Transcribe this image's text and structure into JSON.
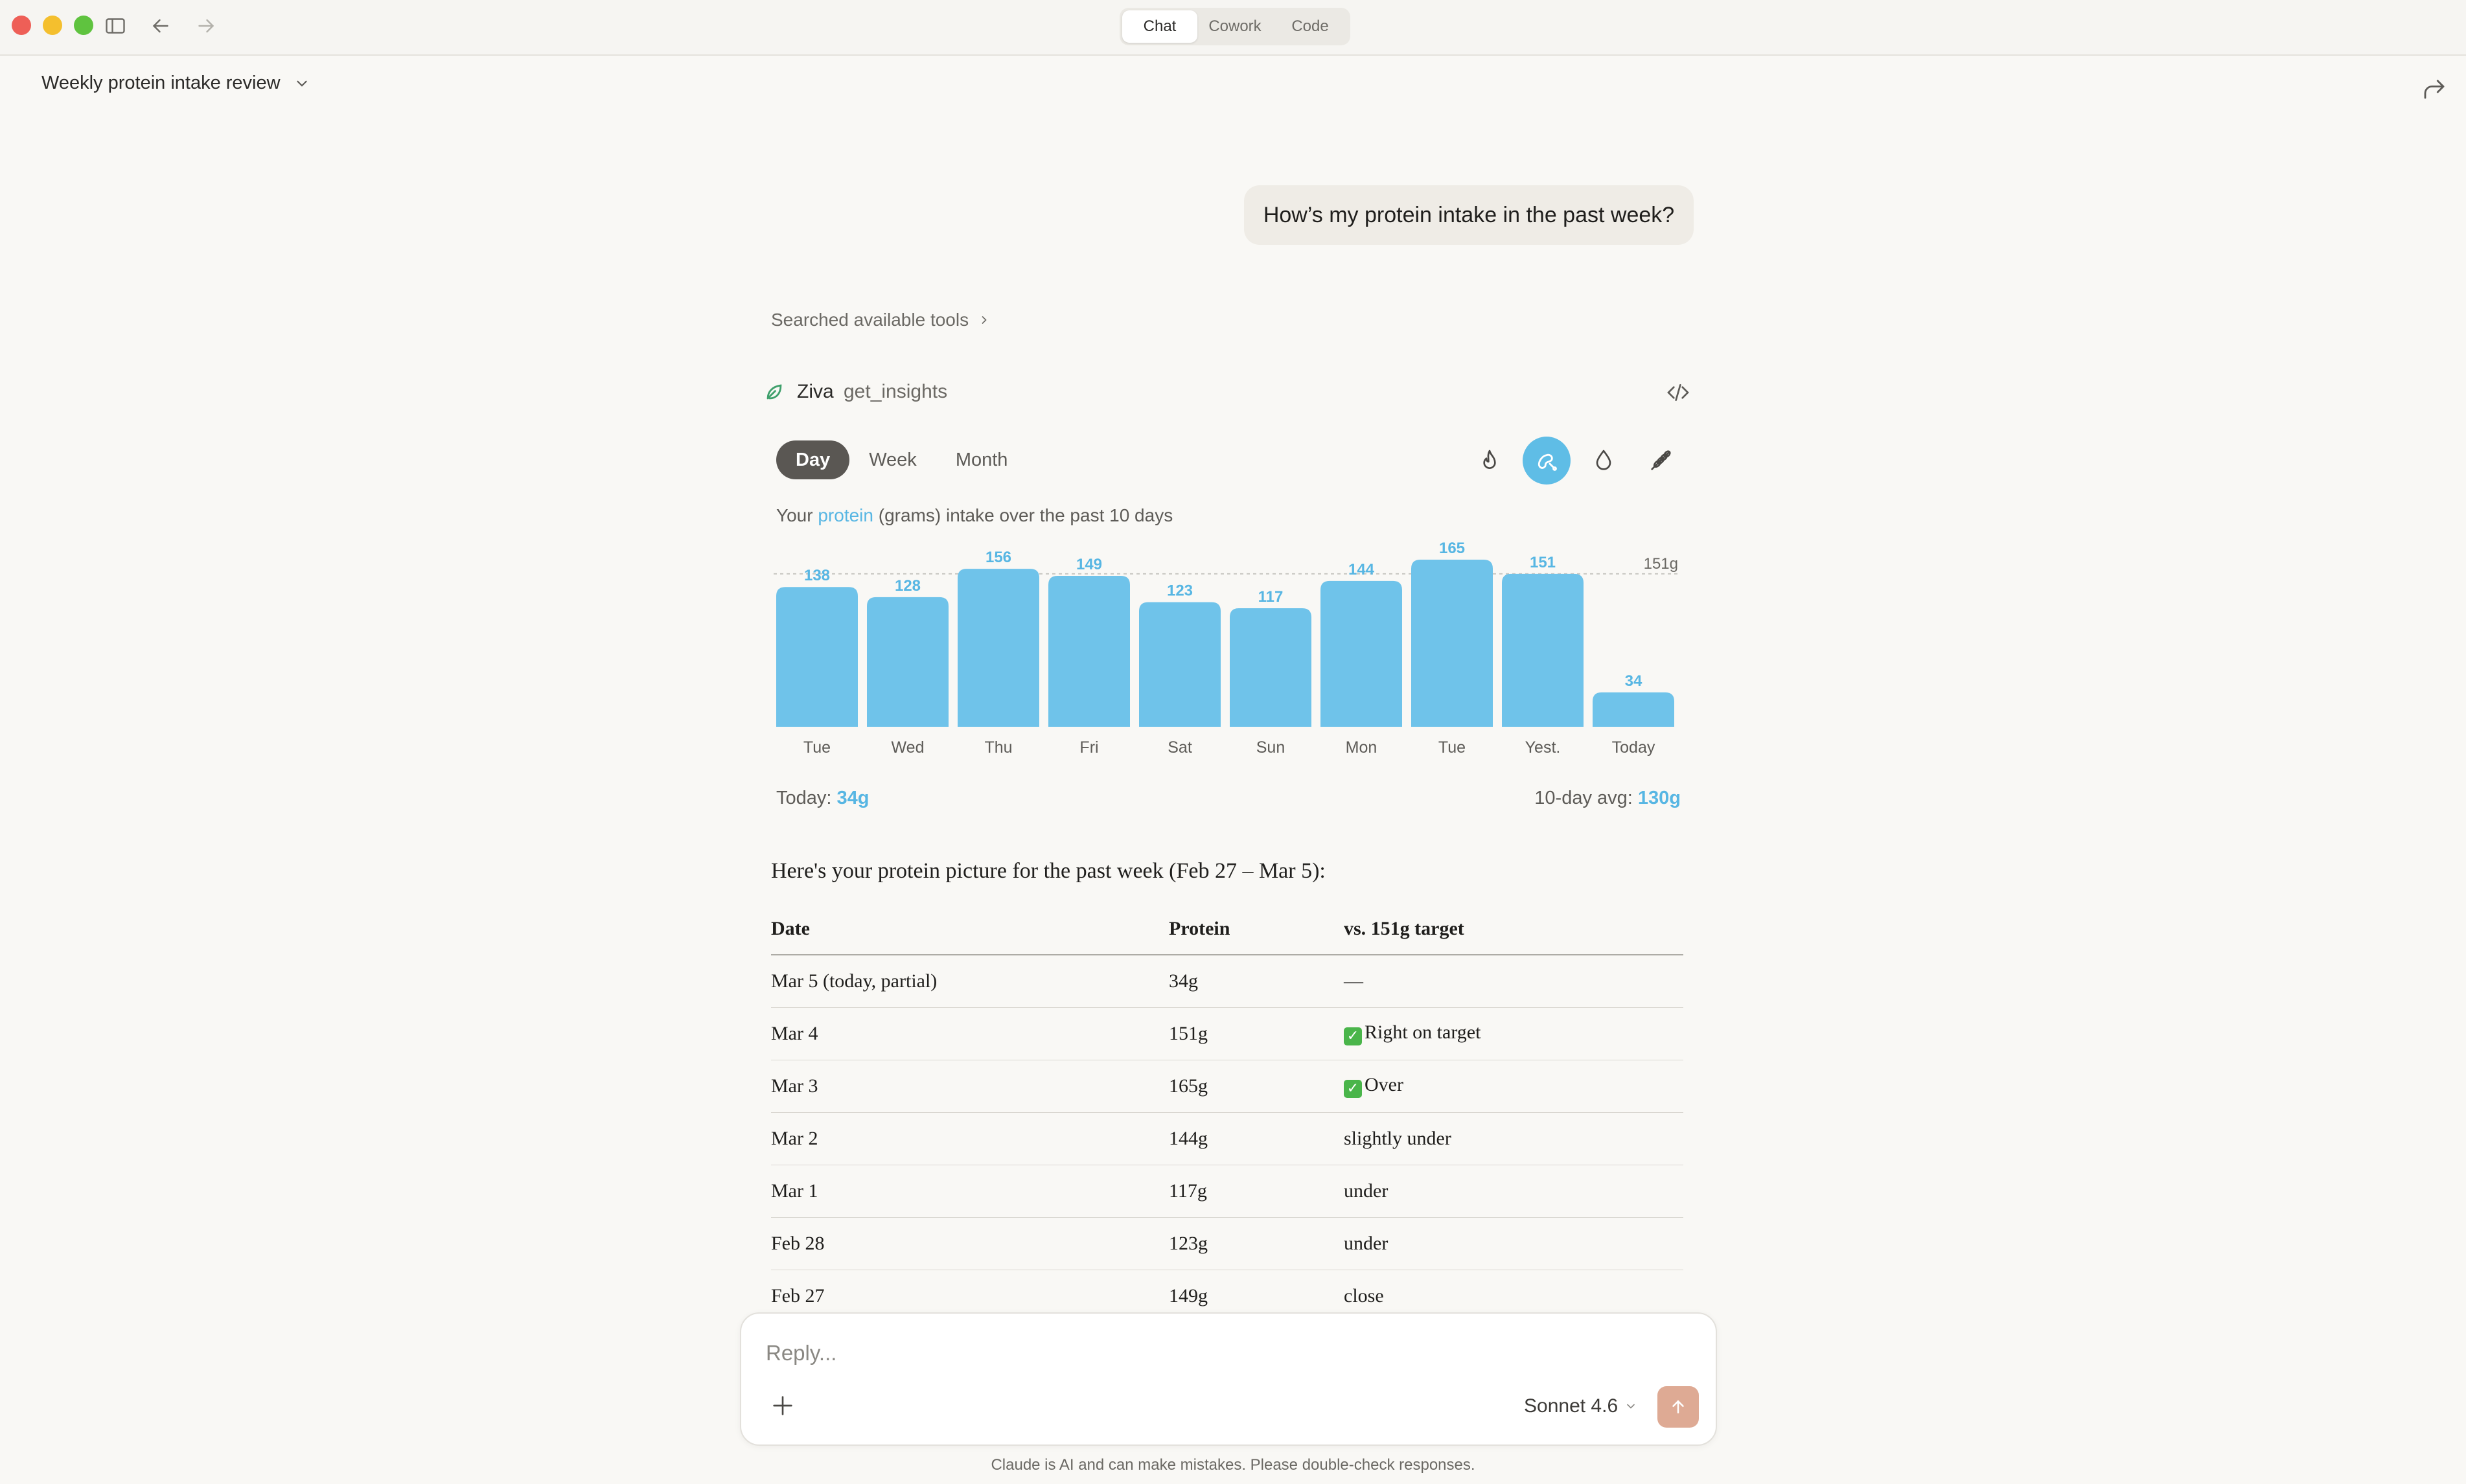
{
  "window": {
    "modes": [
      "Chat",
      "Cowork",
      "Code"
    ],
    "active_mode": "Chat"
  },
  "conversation": {
    "title": "Weekly protein intake review"
  },
  "user_message": "How’s my protein intake in the past week?",
  "tool_activity": {
    "searched_label": "Searched available tools",
    "tool_name": "Ziva",
    "tool_function": "get_insights"
  },
  "widget": {
    "period_tabs": [
      "Day",
      "Week",
      "Month"
    ],
    "active_period": "Day",
    "metric_icons": [
      "flame-icon",
      "protein-icon",
      "drop-icon",
      "grain-icon"
    ],
    "active_metric": "protein-icon",
    "caption_prefix": "Your ",
    "caption_highlight": "protein",
    "caption_suffix": " (grams) intake over the past 10 days",
    "footer_today_label": "Today: ",
    "footer_today_value": "34g",
    "footer_avg_label": "10-day avg: ",
    "footer_avg_value": "130g",
    "accent_color": "#6fc3ea"
  },
  "chart_data": {
    "type": "bar",
    "categories": [
      "Tue",
      "Wed",
      "Thu",
      "Fri",
      "Sat",
      "Sun",
      "Mon",
      "Tue",
      "Yest.",
      "Today"
    ],
    "values": [
      138,
      128,
      156,
      149,
      123,
      117,
      144,
      165,
      151,
      34
    ],
    "target_value": 151,
    "target_label": "151g",
    "ylim": [
      0,
      165
    ],
    "bar_color": "#6fc3ea",
    "label_color": "#57b6e3"
  },
  "response": {
    "intro": "Here's your protein picture for the past week (Feb 27 – Mar 5):",
    "table_headers": [
      "Date",
      "Protein",
      "vs. 151g target"
    ],
    "rows": [
      {
        "date": "Mar 5 (today, partial)",
        "protein": "34g",
        "vs": "—",
        "check": false
      },
      {
        "date": "Mar 4",
        "protein": "151g",
        "vs": "Right on target",
        "check": true
      },
      {
        "date": "Mar 3",
        "protein": "165g",
        "vs": "Over",
        "check": true
      },
      {
        "date": "Mar 2",
        "protein": "144g",
        "vs": "slightly under",
        "check": false
      },
      {
        "date": "Mar 1",
        "protein": "117g",
        "vs": "under",
        "check": false
      },
      {
        "date": "Feb 28",
        "protein": "123g",
        "vs": "under",
        "check": false
      },
      {
        "date": "Feb 27",
        "protein": "149g",
        "vs": "close",
        "check": false
      }
    ]
  },
  "composer": {
    "placeholder": "Reply...",
    "model": "Sonnet 4.6"
  },
  "disclaimer": "Claude is AI and can make mistakes. Please double-check responses."
}
